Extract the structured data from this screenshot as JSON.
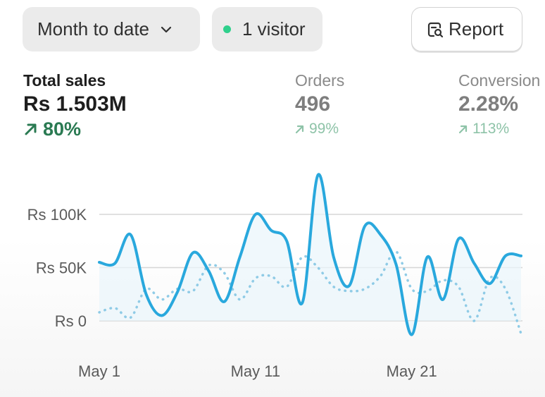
{
  "filters": {
    "date_range": "Month to date",
    "visitors": "1 visitor",
    "report_label": "Report"
  },
  "metrics": {
    "total_sales": {
      "label": "Total sales",
      "value": "Rs 1.503M",
      "change": "80%"
    },
    "orders": {
      "label": "Orders",
      "value": "496",
      "change": "99%"
    },
    "conversion": {
      "label": "Conversion",
      "value": "2.28%",
      "change": "113%"
    }
  },
  "colors": {
    "primary_line": "#29a8dd",
    "comparison_line": "#8fcbe6",
    "positive": "#2a7a52",
    "live_dot": "#2fd08c"
  },
  "chart_data": {
    "type": "line",
    "x_tick_labels": [
      "May 1",
      "May 11",
      "May 21"
    ],
    "x_tick_days": [
      1,
      11,
      21
    ],
    "y_tick_labels": [
      "Rs 0",
      "Rs 50K",
      "Rs 100K"
    ],
    "y_ticks": [
      0,
      50000,
      100000
    ],
    "ylim": [
      0,
      140000
    ],
    "grid": true,
    "series": [
      {
        "x": [
          1,
          2,
          3,
          4,
          5,
          6,
          7,
          8,
          9,
          10,
          11,
          12,
          13,
          14,
          15,
          16,
          17,
          18,
          19,
          20,
          21,
          22,
          23,
          24,
          25,
          26,
          27,
          28
        ],
        "values": [
          55000,
          54000,
          81000,
          25000,
          5000,
          27000,
          64000,
          47000,
          18000,
          60000,
          100000,
          85000,
          75000,
          17000,
          137000,
          60000,
          33000,
          89000,
          81000,
          53000,
          -13000,
          60000,
          20000,
          77000,
          54000,
          35000,
          61000,
          61000
        ]
      },
      {
        "x": [
          1,
          2,
          3,
          4,
          5,
          6,
          7,
          8,
          9,
          10,
          11,
          12,
          13,
          14,
          15,
          16,
          17,
          18,
          19,
          20,
          21,
          22,
          23,
          24,
          25,
          26,
          27,
          28
        ],
        "values": [
          8000,
          12000,
          3000,
          30000,
          20000,
          30000,
          28000,
          52000,
          45000,
          20000,
          40000,
          42000,
          32000,
          60000,
          50000,
          32000,
          28000,
          30000,
          42000,
          65000,
          30000,
          28000,
          38000,
          32000,
          0,
          40000,
          30000,
          -12000
        ]
      }
    ]
  }
}
